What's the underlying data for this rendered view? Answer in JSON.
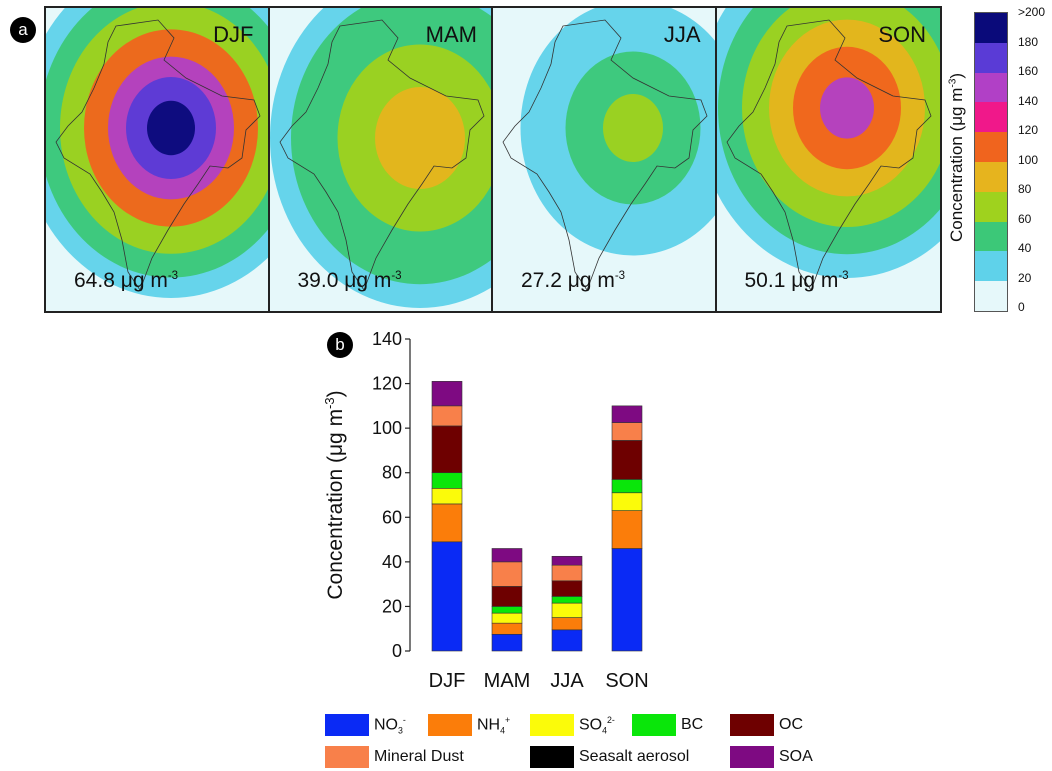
{
  "panel_a": {
    "badge": "a",
    "maps": [
      {
        "season": "DJF",
        "value": "64.8",
        "unit": "μg m",
        "exp": "-3"
      },
      {
        "season": "MAM",
        "value": "39.0",
        "unit": "μg m",
        "exp": "-3"
      },
      {
        "season": "JJA",
        "value": "27.2",
        "unit": "μg m",
        "exp": "-3"
      },
      {
        "season": "SON",
        "value": "50.1",
        "unit": "μg m",
        "exp": "-3"
      }
    ],
    "colorbar": {
      "title": "Concentration (μg m",
      "title_exp": "-3",
      "title_close": ")",
      "ticks": [
        ">200",
        "180",
        "160",
        "140",
        "120",
        "100",
        "80",
        "60",
        "40",
        "20",
        "0"
      ],
      "colors": [
        "#0a0a7a",
        "#5a3bd6",
        "#b140c6",
        "#f0188a",
        "#f0641e",
        "#e6b41e",
        "#9fd21e",
        "#3cc878",
        "#5fd2ea",
        "#e6f8fa"
      ]
    }
  },
  "panel_b": {
    "badge": "b",
    "chart_data": {
      "type": "bar",
      "stacked": true,
      "categories": [
        "DJF",
        "MAM",
        "JJA",
        "SON"
      ],
      "ylabel": "Concentration (μg m",
      "ylabel_exp": "-3",
      "ylabel_close": ")",
      "ylim": [
        0,
        140
      ],
      "yticks": [
        0,
        20,
        40,
        60,
        80,
        100,
        120,
        140
      ],
      "series": [
        {
          "name": "NO3-",
          "color": "#0a2af5",
          "values": [
            49,
            7.5,
            9.5,
            46
          ]
        },
        {
          "name": "NH4+",
          "color": "#fb7d0a",
          "values": [
            17,
            5,
            5.5,
            17
          ]
        },
        {
          "name": "SO42-",
          "color": "#fbfb0a",
          "values": [
            7,
            4.5,
            6.5,
            8
          ]
        },
        {
          "name": "BC",
          "color": "#0ae60a",
          "values": [
            7,
            3,
            3,
            6
          ]
        },
        {
          "name": "OC",
          "color": "#6e0000",
          "values": [
            21,
            9,
            7,
            17.5
          ]
        },
        {
          "name": "Mineral Dust",
          "color": "#f8804a",
          "values": [
            9,
            11,
            7,
            8
          ]
        },
        {
          "name": "Seasalt aerosol",
          "color": "#000000",
          "values": [
            0,
            0,
            0,
            0
          ]
        },
        {
          "name": "SOA",
          "color": "#7e0a82",
          "values": [
            11,
            6,
            4,
            7.5
          ]
        }
      ]
    },
    "legend": [
      {
        "base": "NO",
        "sub": "3",
        "sup": "-"
      },
      {
        "base": "NH",
        "sub": "4",
        "sup": "+"
      },
      {
        "base": "SO",
        "sub": "4",
        "sup": "2-"
      },
      {
        "base": "BC",
        "sub": "",
        "sup": ""
      },
      {
        "base": "OC",
        "sub": "",
        "sup": ""
      },
      {
        "base": "Mineral Dust",
        "sub": "",
        "sup": ""
      },
      {
        "base": "Seasalt aerosol",
        "sub": "",
        "sup": ""
      },
      {
        "base": "SOA",
        "sub": "",
        "sup": ""
      }
    ]
  }
}
